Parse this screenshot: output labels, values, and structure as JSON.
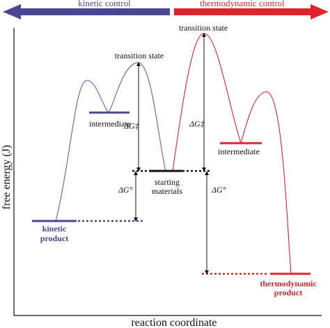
{
  "banner": {
    "kinetic_label": "kinetic control",
    "thermo_label": "thermodynamic control",
    "kinetic_color": "#4b4593",
    "thermo_color": "#d9252b"
  },
  "axes": {
    "xlabel": "reaction coordinate",
    "ylabel": "free energy (J)"
  },
  "labels": {
    "transition_state_kinetic": "transition state",
    "transition_state_thermo": "transition state",
    "intermediate_kinetic": "intermediate",
    "intermediate_thermo": "intermediate",
    "starting_materials_line1": "starting",
    "starting_materials_line2": "materials",
    "kinetic_product_line1": "kinetic",
    "kinetic_product_line2": "product",
    "thermo_product_line1": "thermodynamic",
    "thermo_product_line2": "product",
    "dg_ts_kinetic": "ΔG‡",
    "dg_ts_thermo": "ΔG‡",
    "dg0_kinetic": "ΔG°",
    "dg0_thermo": "ΔG°"
  },
  "colors": {
    "kinetic_curve": "#5a5aa0",
    "thermo_curve": "#d9252b",
    "axis": "#111111"
  }
}
